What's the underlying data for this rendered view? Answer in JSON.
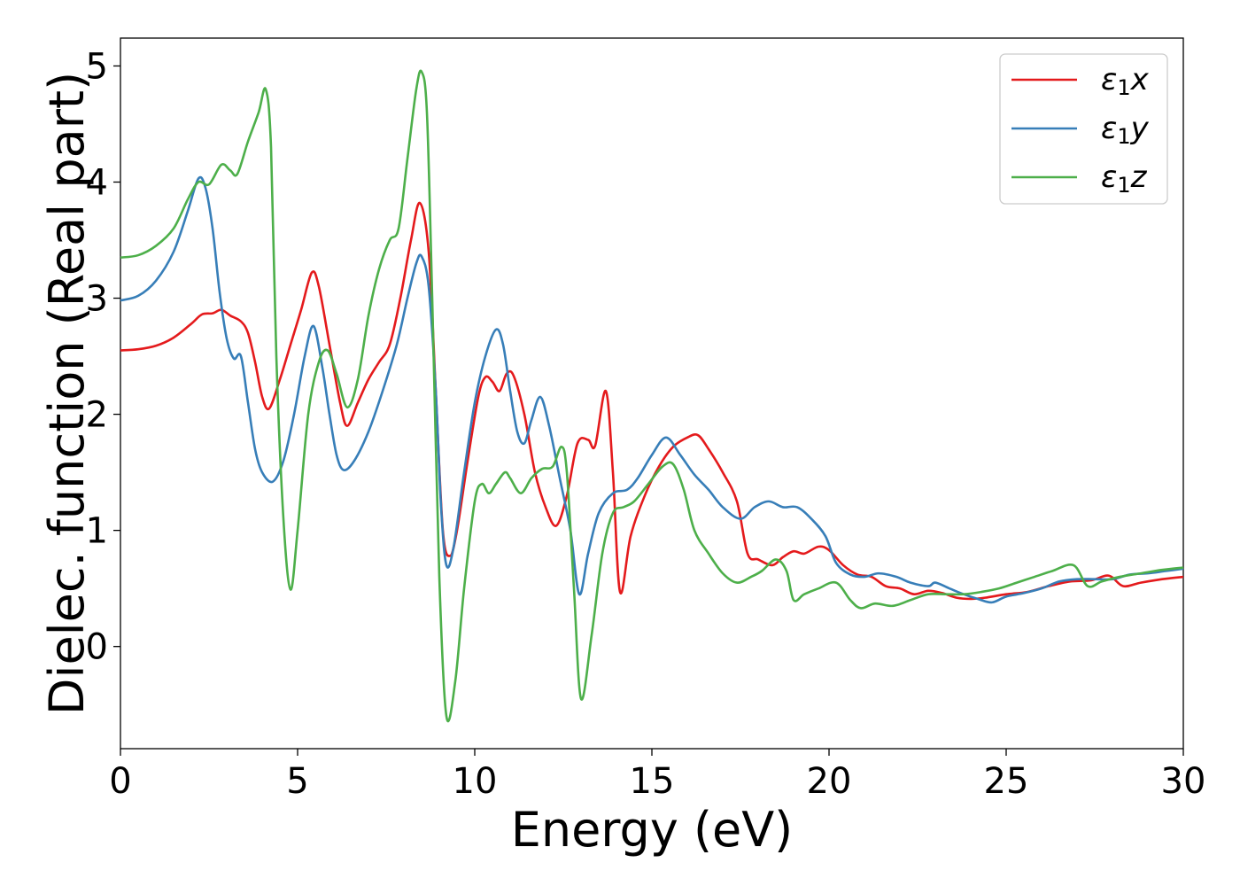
{
  "chart_data": {
    "type": "line",
    "xlabel": "Energy (eV)",
    "ylabel": "Dielec. function (Real part)",
    "xlim": [
      0,
      30
    ],
    "ylim": [
      -0.88,
      5.24
    ],
    "xticks": [
      0,
      5,
      10,
      15,
      20,
      25,
      30
    ],
    "yticks": [
      0,
      1,
      2,
      3,
      4,
      5
    ],
    "grid": false,
    "legend_position": "top-right",
    "series": [
      {
        "name": "ε₁x",
        "legend": {
          "base": "ε",
          "sub": "1",
          "var": "x"
        },
        "color": "#e41a1c",
        "points": [
          [
            0,
            2.55
          ],
          [
            0.5,
            2.56
          ],
          [
            1.0,
            2.59
          ],
          [
            1.5,
            2.66
          ],
          [
            2.0,
            2.78
          ],
          [
            2.3,
            2.86
          ],
          [
            2.6,
            2.87
          ],
          [
            2.85,
            2.9
          ],
          [
            3.1,
            2.85
          ],
          [
            3.4,
            2.8
          ],
          [
            3.6,
            2.7
          ],
          [
            3.8,
            2.45
          ],
          [
            4.0,
            2.15
          ],
          [
            4.2,
            2.05
          ],
          [
            4.5,
            2.3
          ],
          [
            4.8,
            2.6
          ],
          [
            5.1,
            2.9
          ],
          [
            5.4,
            3.22
          ],
          [
            5.6,
            3.1
          ],
          [
            5.9,
            2.6
          ],
          [
            6.2,
            2.1
          ],
          [
            6.4,
            1.9
          ],
          [
            6.7,
            2.1
          ],
          [
            7.0,
            2.3
          ],
          [
            7.3,
            2.45
          ],
          [
            7.6,
            2.6
          ],
          [
            7.9,
            3.0
          ],
          [
            8.2,
            3.5
          ],
          [
            8.45,
            3.82
          ],
          [
            8.7,
            3.4
          ],
          [
            8.9,
            2.2
          ],
          [
            9.1,
            1.0
          ],
          [
            9.3,
            0.78
          ],
          [
            9.5,
            1.0
          ],
          [
            9.8,
            1.6
          ],
          [
            10.1,
            2.15
          ],
          [
            10.3,
            2.32
          ],
          [
            10.5,
            2.28
          ],
          [
            10.7,
            2.2
          ],
          [
            10.9,
            2.35
          ],
          [
            11.1,
            2.33
          ],
          [
            11.4,
            2.0
          ],
          [
            11.7,
            1.5
          ],
          [
            12.0,
            1.2
          ],
          [
            12.3,
            1.04
          ],
          [
            12.6,
            1.3
          ],
          [
            12.9,
            1.75
          ],
          [
            13.2,
            1.78
          ],
          [
            13.4,
            1.73
          ],
          [
            13.7,
            2.2
          ],
          [
            13.9,
            1.5
          ],
          [
            14.1,
            0.47
          ],
          [
            14.4,
            0.95
          ],
          [
            14.8,
            1.3
          ],
          [
            15.2,
            1.55
          ],
          [
            15.6,
            1.72
          ],
          [
            16.0,
            1.8
          ],
          [
            16.3,
            1.82
          ],
          [
            16.6,
            1.7
          ],
          [
            17.0,
            1.5
          ],
          [
            17.4,
            1.25
          ],
          [
            17.7,
            0.8
          ],
          [
            18.0,
            0.75
          ],
          [
            18.4,
            0.7
          ],
          [
            18.7,
            0.77
          ],
          [
            19.0,
            0.82
          ],
          [
            19.3,
            0.8
          ],
          [
            19.7,
            0.86
          ],
          [
            20.0,
            0.83
          ],
          [
            20.4,
            0.7
          ],
          [
            20.8,
            0.62
          ],
          [
            21.2,
            0.6
          ],
          [
            21.6,
            0.52
          ],
          [
            22.0,
            0.5
          ],
          [
            22.4,
            0.45
          ],
          [
            22.8,
            0.48
          ],
          [
            23.2,
            0.46
          ],
          [
            23.6,
            0.42
          ],
          [
            24.0,
            0.41
          ],
          [
            24.4,
            0.42
          ],
          [
            25.0,
            0.45
          ],
          [
            25.6,
            0.47
          ],
          [
            26.2,
            0.52
          ],
          [
            26.8,
            0.56
          ],
          [
            27.4,
            0.57
          ],
          [
            27.9,
            0.61
          ],
          [
            28.3,
            0.52
          ],
          [
            28.8,
            0.55
          ],
          [
            29.4,
            0.58
          ],
          [
            30.0,
            0.6
          ]
        ]
      },
      {
        "name": "ε₁y",
        "legend": {
          "base": "ε",
          "sub": "1",
          "var": "y"
        },
        "color": "#377eb8",
        "points": [
          [
            0,
            2.98
          ],
          [
            0.5,
            3.02
          ],
          [
            1.0,
            3.15
          ],
          [
            1.5,
            3.4
          ],
          [
            1.9,
            3.75
          ],
          [
            2.2,
            4.03
          ],
          [
            2.4,
            3.95
          ],
          [
            2.6,
            3.6
          ],
          [
            2.8,
            3.05
          ],
          [
            3.0,
            2.65
          ],
          [
            3.2,
            2.48
          ],
          [
            3.4,
            2.5
          ],
          [
            3.6,
            2.1
          ],
          [
            3.8,
            1.7
          ],
          [
            4.0,
            1.5
          ],
          [
            4.3,
            1.42
          ],
          [
            4.6,
            1.6
          ],
          [
            4.9,
            2.0
          ],
          [
            5.2,
            2.5
          ],
          [
            5.45,
            2.76
          ],
          [
            5.7,
            2.4
          ],
          [
            5.9,
            2.0
          ],
          [
            6.1,
            1.65
          ],
          [
            6.3,
            1.52
          ],
          [
            6.6,
            1.6
          ],
          [
            7.0,
            1.85
          ],
          [
            7.4,
            2.2
          ],
          [
            7.8,
            2.6
          ],
          [
            8.1,
            3.0
          ],
          [
            8.35,
            3.3
          ],
          [
            8.5,
            3.36
          ],
          [
            8.7,
            3.1
          ],
          [
            8.9,
            2.2
          ],
          [
            9.05,
            1.2
          ],
          [
            9.2,
            0.7
          ],
          [
            9.4,
            0.85
          ],
          [
            9.7,
            1.5
          ],
          [
            10.0,
            2.1
          ],
          [
            10.3,
            2.5
          ],
          [
            10.6,
            2.73
          ],
          [
            10.8,
            2.6
          ],
          [
            11.0,
            2.2
          ],
          [
            11.2,
            1.85
          ],
          [
            11.4,
            1.75
          ],
          [
            11.6,
            1.95
          ],
          [
            11.85,
            2.15
          ],
          [
            12.1,
            1.9
          ],
          [
            12.4,
            1.45
          ],
          [
            12.7,
            1.0
          ],
          [
            12.95,
            0.45
          ],
          [
            13.2,
            0.8
          ],
          [
            13.5,
            1.15
          ],
          [
            13.9,
            1.32
          ],
          [
            14.3,
            1.35
          ],
          [
            14.6,
            1.45
          ],
          [
            15.0,
            1.65
          ],
          [
            15.4,
            1.8
          ],
          [
            15.8,
            1.65
          ],
          [
            16.2,
            1.48
          ],
          [
            16.6,
            1.35
          ],
          [
            17.0,
            1.2
          ],
          [
            17.5,
            1.1
          ],
          [
            17.9,
            1.2
          ],
          [
            18.3,
            1.25
          ],
          [
            18.7,
            1.2
          ],
          [
            19.1,
            1.2
          ],
          [
            19.5,
            1.1
          ],
          [
            19.9,
            0.95
          ],
          [
            20.2,
            0.72
          ],
          [
            20.6,
            0.62
          ],
          [
            21.0,
            0.6
          ],
          [
            21.4,
            0.63
          ],
          [
            21.9,
            0.6
          ],
          [
            22.3,
            0.55
          ],
          [
            22.8,
            0.52
          ],
          [
            23.0,
            0.55
          ],
          [
            23.4,
            0.5
          ],
          [
            23.8,
            0.45
          ],
          [
            24.2,
            0.41
          ],
          [
            24.6,
            0.38
          ],
          [
            25.0,
            0.43
          ],
          [
            25.5,
            0.46
          ],
          [
            26.0,
            0.5
          ],
          [
            26.5,
            0.56
          ],
          [
            27.0,
            0.58
          ],
          [
            27.5,
            0.58
          ],
          [
            28.0,
            0.58
          ],
          [
            28.5,
            0.62
          ],
          [
            29.0,
            0.63
          ],
          [
            29.5,
            0.65
          ],
          [
            30.0,
            0.67
          ]
        ]
      },
      {
        "name": "ε₁z",
        "legend": {
          "base": "ε",
          "sub": "1",
          "var": "z"
        },
        "color": "#4daf4a",
        "points": [
          [
            0,
            3.35
          ],
          [
            0.5,
            3.37
          ],
          [
            1.0,
            3.45
          ],
          [
            1.5,
            3.6
          ],
          [
            1.9,
            3.85
          ],
          [
            2.2,
            4.0
          ],
          [
            2.5,
            3.98
          ],
          [
            2.85,
            4.15
          ],
          [
            3.1,
            4.1
          ],
          [
            3.3,
            4.07
          ],
          [
            3.6,
            4.35
          ],
          [
            3.9,
            4.6
          ],
          [
            4.1,
            4.8
          ],
          [
            4.25,
            4.3
          ],
          [
            4.4,
            2.5
          ],
          [
            4.6,
            1.1
          ],
          [
            4.8,
            0.49
          ],
          [
            5.0,
            1.0
          ],
          [
            5.3,
            2.0
          ],
          [
            5.6,
            2.45
          ],
          [
            5.85,
            2.55
          ],
          [
            6.1,
            2.35
          ],
          [
            6.4,
            2.06
          ],
          [
            6.7,
            2.3
          ],
          [
            7.0,
            2.85
          ],
          [
            7.3,
            3.25
          ],
          [
            7.6,
            3.5
          ],
          [
            7.85,
            3.6
          ],
          [
            8.1,
            4.2
          ],
          [
            8.35,
            4.8
          ],
          [
            8.5,
            4.95
          ],
          [
            8.65,
            4.6
          ],
          [
            8.8,
            3.0
          ],
          [
            9.0,
            0.6
          ],
          [
            9.2,
            -0.6
          ],
          [
            9.45,
            -0.3
          ],
          [
            9.7,
            0.5
          ],
          [
            10.0,
            1.25
          ],
          [
            10.2,
            1.4
          ],
          [
            10.4,
            1.32
          ],
          [
            10.6,
            1.4
          ],
          [
            10.85,
            1.5
          ],
          [
            11.0,
            1.45
          ],
          [
            11.3,
            1.32
          ],
          [
            11.6,
            1.45
          ],
          [
            11.9,
            1.53
          ],
          [
            12.2,
            1.55
          ],
          [
            12.45,
            1.72
          ],
          [
            12.6,
            1.5
          ],
          [
            12.8,
            0.5
          ],
          [
            13.0,
            -0.45
          ],
          [
            13.3,
            0.1
          ],
          [
            13.6,
            0.8
          ],
          [
            13.9,
            1.15
          ],
          [
            14.2,
            1.2
          ],
          [
            14.5,
            1.25
          ],
          [
            14.9,
            1.4
          ],
          [
            15.3,
            1.55
          ],
          [
            15.6,
            1.57
          ],
          [
            15.9,
            1.35
          ],
          [
            16.2,
            1.0
          ],
          [
            16.6,
            0.8
          ],
          [
            17.0,
            0.63
          ],
          [
            17.4,
            0.55
          ],
          [
            17.8,
            0.6
          ],
          [
            18.1,
            0.65
          ],
          [
            18.5,
            0.75
          ],
          [
            18.8,
            0.65
          ],
          [
            19.0,
            0.4
          ],
          [
            19.3,
            0.45
          ],
          [
            19.7,
            0.5
          ],
          [
            20.2,
            0.55
          ],
          [
            20.6,
            0.4
          ],
          [
            20.9,
            0.33
          ],
          [
            21.3,
            0.37
          ],
          [
            21.8,
            0.35
          ],
          [
            22.3,
            0.4
          ],
          [
            22.8,
            0.45
          ],
          [
            23.3,
            0.45
          ],
          [
            23.8,
            0.45
          ],
          [
            24.3,
            0.47
          ],
          [
            24.8,
            0.5
          ],
          [
            25.3,
            0.55
          ],
          [
            25.8,
            0.6
          ],
          [
            26.3,
            0.65
          ],
          [
            26.9,
            0.7
          ],
          [
            27.3,
            0.52
          ],
          [
            27.7,
            0.56
          ],
          [
            28.2,
            0.6
          ],
          [
            28.8,
            0.63
          ],
          [
            29.4,
            0.66
          ],
          [
            30.0,
            0.68
          ]
        ]
      }
    ]
  }
}
